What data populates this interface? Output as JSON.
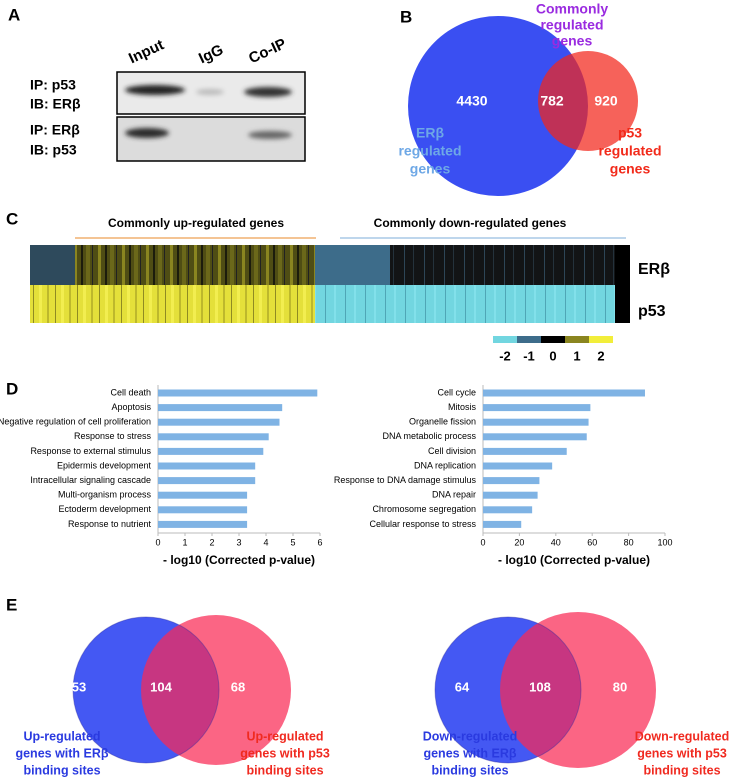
{
  "panel_labels": [
    "A",
    "B",
    "C",
    "D",
    "E"
  ],
  "blot": {
    "lanes": [
      "Input",
      "IgG",
      "Co-IP"
    ],
    "rows": [
      [
        "IP: p53",
        "IB: ERβ"
      ],
      [
        "IP: ERβ",
        "IB: p53"
      ]
    ]
  },
  "venn_b": {
    "overlap_label": [
      "Commonly",
      "regulated",
      "genes"
    ],
    "left_label": [
      "ERβ",
      "regulated",
      "genes"
    ],
    "right_label": [
      "p53",
      "regulated",
      "genes"
    ],
    "left_only": 4430,
    "both": 782,
    "right_only": 920
  },
  "heatmap": {
    "groups": [
      "Commonly up-regulated genes",
      "Commonly down-regulated genes"
    ],
    "rows": [
      "ERβ",
      "p53"
    ],
    "scale_ticks": [
      -2,
      -1,
      0,
      1,
      2
    ]
  },
  "chart_data": [
    {
      "type": "bar",
      "orientation": "horizontal",
      "color": "#7fb3e4",
      "categories": [
        "Cell death",
        "Apoptosis",
        "Negative regulation of cell proliferation",
        "Response to stress",
        "Response to external stimulus",
        "Epidermis development",
        "Intracellular signaling cascade",
        "Multi-organism process",
        "Ectoderm development",
        "Response to nutrient"
      ],
      "values": [
        5.9,
        4.6,
        4.5,
        4.1,
        3.9,
        3.6,
        3.6,
        3.3,
        3.3,
        3.3
      ],
      "xlim": [
        0,
        6
      ],
      "xticks": [
        0,
        1,
        2,
        3,
        4,
        5,
        6
      ],
      "xlabel": "- log10 (Corrected p-value)"
    },
    {
      "type": "bar",
      "orientation": "horizontal",
      "color": "#7fb3e4",
      "categories": [
        "Cell cycle",
        "Mitosis",
        "Organelle fission",
        "DNA metabolic process",
        "Cell division",
        "DNA replication",
        "Response to DNA damage stimulus",
        "DNA repair",
        "Chromosome segregation",
        "Cellular response to stress"
      ],
      "values": [
        89,
        59,
        58,
        57,
        46,
        38,
        31,
        30,
        27,
        21
      ],
      "xlim": [
        0,
        100
      ],
      "xticks": [
        0,
        20,
        40,
        60,
        80,
        100
      ],
      "xlabel": "- log10 (Corrected p-value)"
    }
  ],
  "venn_e": [
    {
      "left_label": [
        "Up-regulated",
        "genes with ERβ",
        "binding sites"
      ],
      "right_label": [
        "Up-regulated",
        "genes with p53",
        "binding sites"
      ],
      "left_only": 53,
      "both": 104,
      "right_only": 68
    },
    {
      "left_label": [
        "Down-regulated",
        "genes with ERβ",
        "binding sites"
      ],
      "right_label": [
        "Down-regulated",
        "genes with p53",
        "binding sites"
      ],
      "left_only": 64,
      "both": 108,
      "right_only": 80
    }
  ]
}
